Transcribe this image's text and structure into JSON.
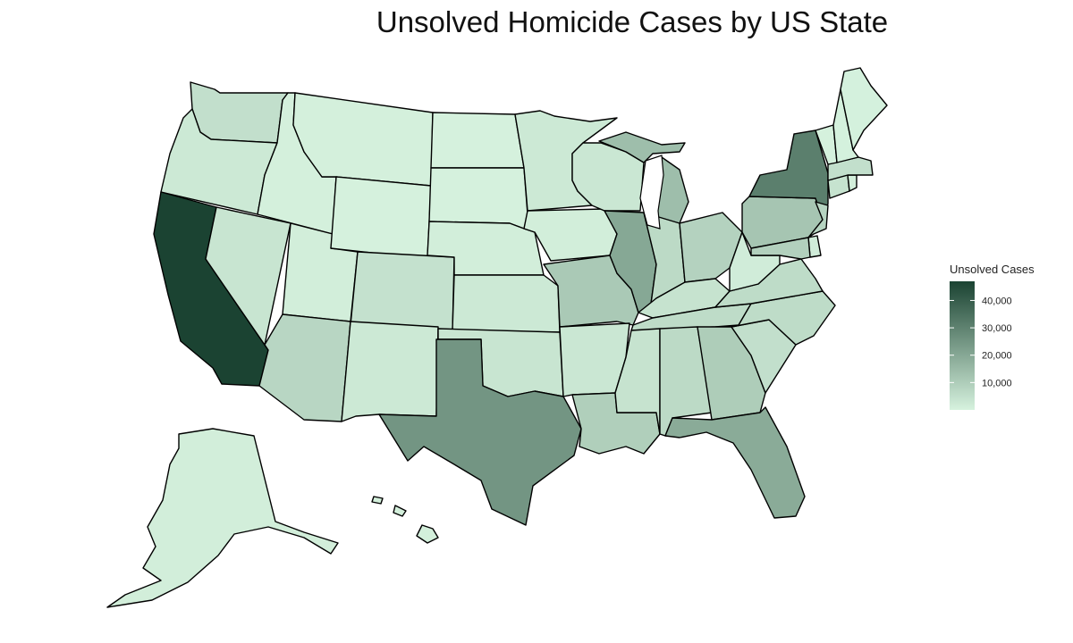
{
  "title": "Unsolved Homicide Cases by US State",
  "legend": {
    "title": "Unsolved Cases",
    "min_color": "#d6f2de",
    "max_color": "#1b4332",
    "range": [
      0,
      47000
    ],
    "ticks": [
      {
        "value": 10000,
        "label": "10,000"
      },
      {
        "value": 20000,
        "label": "20,000"
      },
      {
        "value": 30000,
        "label": "30,000"
      },
      {
        "value": 40000,
        "label": "40,000"
      }
    ]
  },
  "chart_data": {
    "type": "choropleth",
    "value_label": "Unsolved Cases",
    "states": [
      {
        "state": "California",
        "value": 47000
      },
      {
        "state": "New York",
        "value": 31000
      },
      {
        "state": "Texas",
        "value": 25000
      },
      {
        "state": "Illinois",
        "value": 20000
      },
      {
        "state": "Florida",
        "value": 19000
      },
      {
        "state": "Michigan",
        "value": 14000
      },
      {
        "state": "Pennsylvania",
        "value": 12000
      },
      {
        "state": "Missouri",
        "value": 11000
      },
      {
        "state": "Georgia",
        "value": 10000
      },
      {
        "state": "Louisiana",
        "value": 9500
      },
      {
        "state": "Maryland",
        "value": 9000
      },
      {
        "state": "Ohio",
        "value": 8500
      },
      {
        "state": "New Jersey",
        "value": 8000
      },
      {
        "state": "Arizona",
        "value": 7500
      },
      {
        "state": "Alabama",
        "value": 6500
      },
      {
        "state": "Indiana",
        "value": 6500
      },
      {
        "state": "Virginia",
        "value": 6000
      },
      {
        "state": "North Carolina",
        "value": 6000
      },
      {
        "state": "Tennessee",
        "value": 6000
      },
      {
        "state": "South Carolina",
        "value": 5000
      },
      {
        "state": "Washington",
        "value": 5000
      },
      {
        "state": "Massachusetts",
        "value": 5000
      },
      {
        "state": "Colorado",
        "value": 4500
      },
      {
        "state": "Kentucky",
        "value": 4000
      },
      {
        "state": "Mississippi",
        "value": 4000
      },
      {
        "state": "Connecticut",
        "value": 4000
      },
      {
        "state": "Nevada",
        "value": 3500
      },
      {
        "state": "Oklahoma",
        "value": 3500
      },
      {
        "state": "Arkansas",
        "value": 3000
      },
      {
        "state": "Wisconsin",
        "value": 3000
      },
      {
        "state": "Minnesota",
        "value": 2500
      },
      {
        "state": "Kansas",
        "value": 2500
      },
      {
        "state": "Oregon",
        "value": 2500
      },
      {
        "state": "New Mexico",
        "value": 2500
      },
      {
        "state": "Delaware",
        "value": 1500
      },
      {
        "state": "West Virginia",
        "value": 1500
      },
      {
        "state": "Iowa",
        "value": 1000
      },
      {
        "state": "Nebraska",
        "value": 1000
      },
      {
        "state": "Utah",
        "value": 1000
      },
      {
        "state": "Alaska",
        "value": 1000
      },
      {
        "state": "Hawaii",
        "value": 800
      },
      {
        "state": "Idaho",
        "value": 500
      },
      {
        "state": "Montana",
        "value": 500
      },
      {
        "state": "Wyoming",
        "value": 300
      },
      {
        "state": "North Dakota",
        "value": 300
      },
      {
        "state": "South Dakota",
        "value": 300
      },
      {
        "state": "Maine",
        "value": 400
      },
      {
        "state": "New Hampshire",
        "value": 400
      },
      {
        "state": "Vermont",
        "value": 300
      },
      {
        "state": "Rhode Island",
        "value": 1000
      }
    ]
  }
}
